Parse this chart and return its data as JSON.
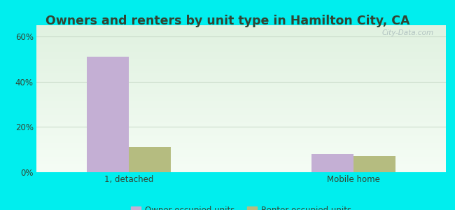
{
  "title": "Owners and renters by unit type in Hamilton City, CA",
  "categories": [
    "1, detached",
    "Mobile home"
  ],
  "owner_values": [
    51,
    8
  ],
  "renter_values": [
    11,
    7
  ],
  "owner_color": "#c4afd4",
  "renter_color": "#b5bc80",
  "ylabel_ticks": [
    0,
    20,
    40,
    60
  ],
  "ylabel_labels": [
    "0%",
    "20%",
    "40%",
    "60%"
  ],
  "ylim": [
    0,
    65
  ],
  "bar_width": 0.32,
  "outer_bg": "#00eeee",
  "legend_owner": "Owner occupied units",
  "legend_renter": "Renter occupied units",
  "watermark": "City-Data.com",
  "title_fontsize": 12.5,
  "tick_fontsize": 8.5,
  "legend_fontsize": 8.5,
  "grid_color": "#ccddcc",
  "text_color": "#334433",
  "group_positions": [
    1.0,
    2.7
  ],
  "xlim": [
    0.3,
    3.4
  ]
}
